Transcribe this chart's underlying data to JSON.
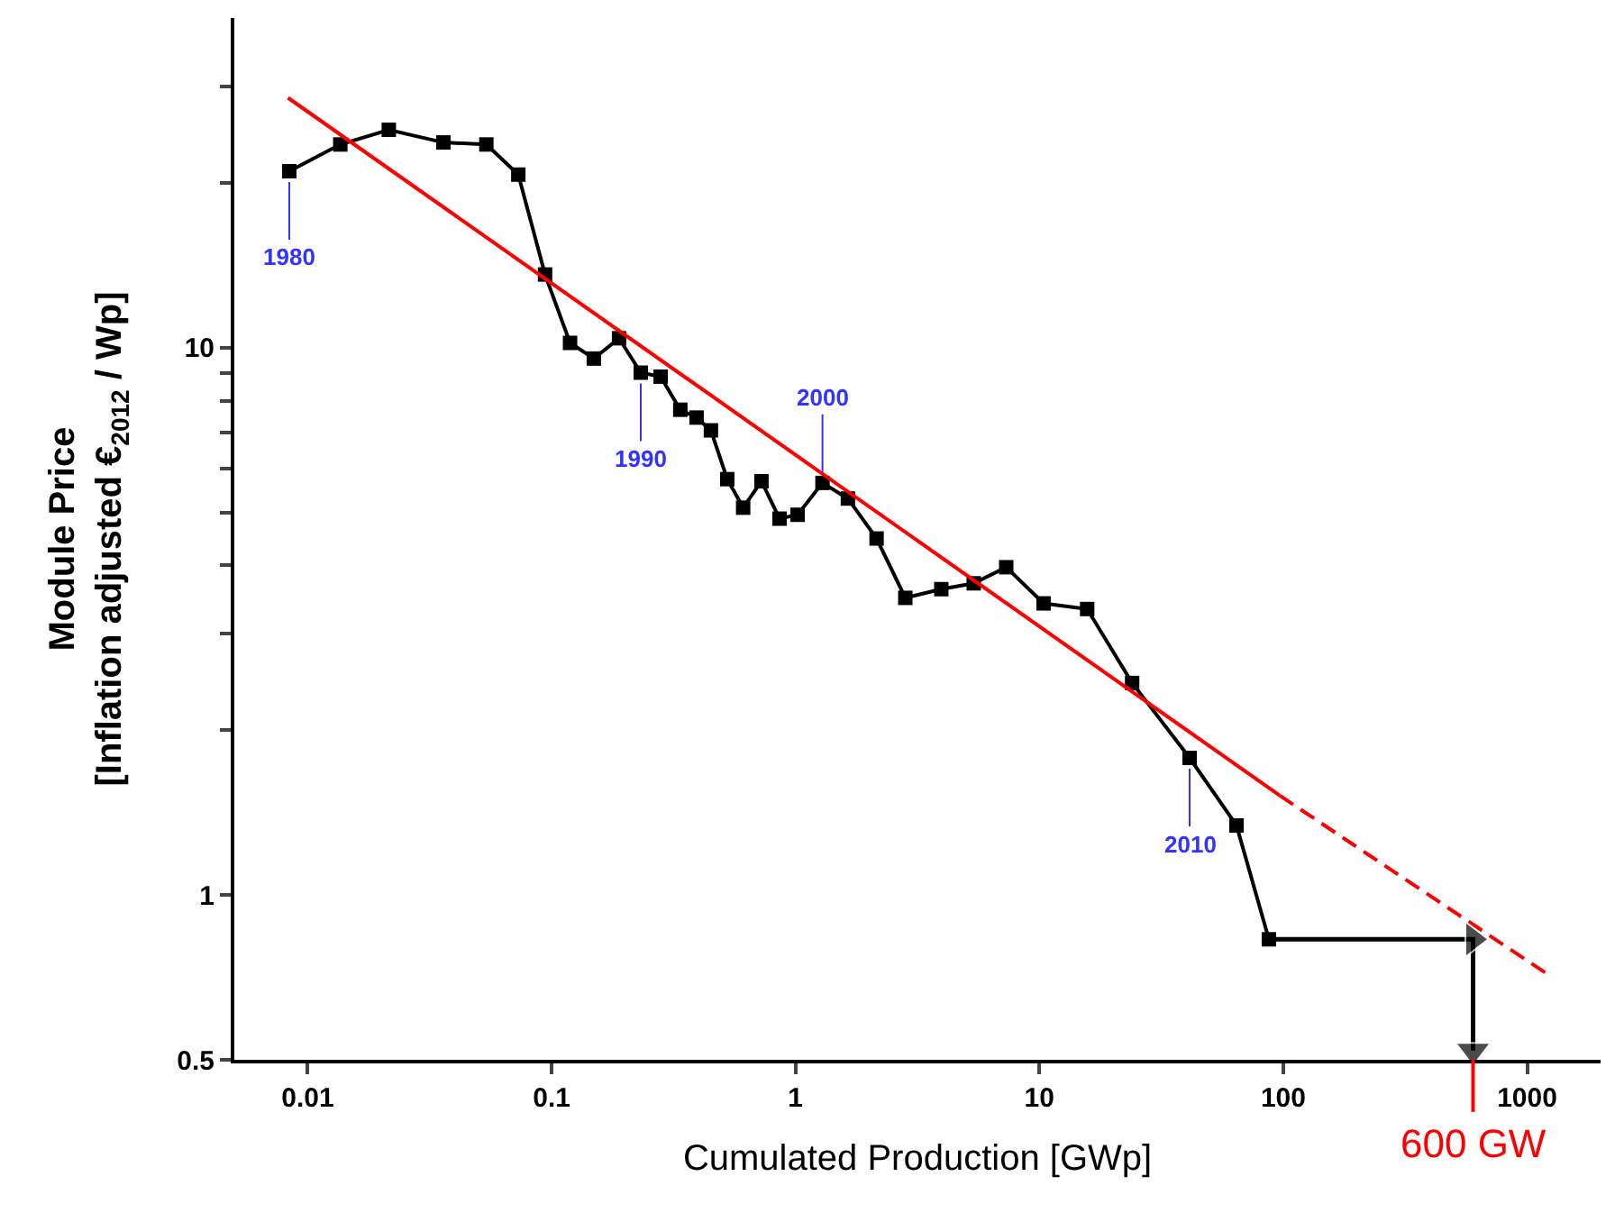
{
  "chart_data": {
    "type": "line",
    "xlabel": "Cumulated Production [GWp]",
    "ylabel": "Module Price\n[Inflation adjusted €$_{2012}$ / Wp]",
    "log": "xy",
    "xlim": [
      0.005,
      2000
    ],
    "ylim": [
      0.5,
      40
    ],
    "xticks": [
      0.01,
      0.1,
      1,
      10,
      100,
      1000
    ],
    "yticks": [
      0.5,
      1,
      {
        "value": 2,
        "label": null
      },
      {
        "value": 3,
        "label": null
      },
      {
        "value": 4,
        "label": null
      },
      {
        "value": 5,
        "label": null
      },
      {
        "value": 6,
        "label": null
      },
      {
        "value": 7,
        "label": null
      },
      {
        "value": 8,
        "label": null
      },
      {
        "value": 9,
        "label": null
      },
      10,
      {
        "value": 20,
        "label": null
      },
      {
        "value": 30,
        "label": null
      }
    ],
    "series": [
      {
        "color": "#000000",
        "marker": "square",
        "line_style": "solid",
        "x": [
          0.0084,
          0.0136,
          0.0215,
          0.036,
          0.054,
          0.073,
          0.094,
          0.119,
          0.149,
          0.189,
          0.232,
          0.28,
          0.337,
          0.393,
          0.45,
          0.525,
          0.61,
          0.725,
          0.86,
          1.02,
          1.29,
          1.64,
          2.15,
          2.82,
          3.96,
          5.38,
          7.31,
          10.4,
          15.7,
          24,
          41.3,
          64.3,
          87.3
        ],
        "values": [
          21,
          23.5,
          25,
          23.7,
          23.5,
          20.7,
          13.6,
          10.2,
          9.55,
          10.4,
          9.0,
          8.85,
          7.7,
          7.45,
          7.06,
          5.75,
          5.1,
          5.7,
          4.87,
          4.95,
          5.66,
          5.3,
          4.48,
          3.49,
          3.62,
          3.71,
          3.97,
          3.41,
          3.33,
          2.44,
          1.78,
          1.34,
          0.83
        ]
      },
      {
        "color": "#ff0000",
        "marker": "none",
        "line_style": "solid",
        "x": [
          0.0083,
          96.6
        ],
        "values": [
          28.6,
          1.52
        ]
      },
      {
        "color": "#ff0000",
        "marker": "none",
        "line_style": "dashed",
        "x": [
          96.6,
          1194
        ],
        "values": [
          1.52,
          0.72
        ]
      },
      {
        "color": "#000000",
        "marker": "triangle",
        "line_style": "solid",
        "x": [
          87.3,
          600,
          600
        ],
        "values": [
          0.83,
          0.83,
          0.52
        ]
      }
    ],
    "ref_lines": [
      {
        "axis": "x",
        "value": 600,
        "label": "600 GW",
        "color": "#ff0000"
      }
    ],
    "annotations": [
      {
        "text": "1980",
        "x": 0.0084,
        "y": 21
      },
      {
        "text": "1990",
        "x": 0.232,
        "y": 9.0
      },
      {
        "text": "2000",
        "x": 1.29,
        "y": 5.66
      },
      {
        "text": "2010",
        "x": 41.3,
        "y": 1.78
      }
    ]
  }
}
